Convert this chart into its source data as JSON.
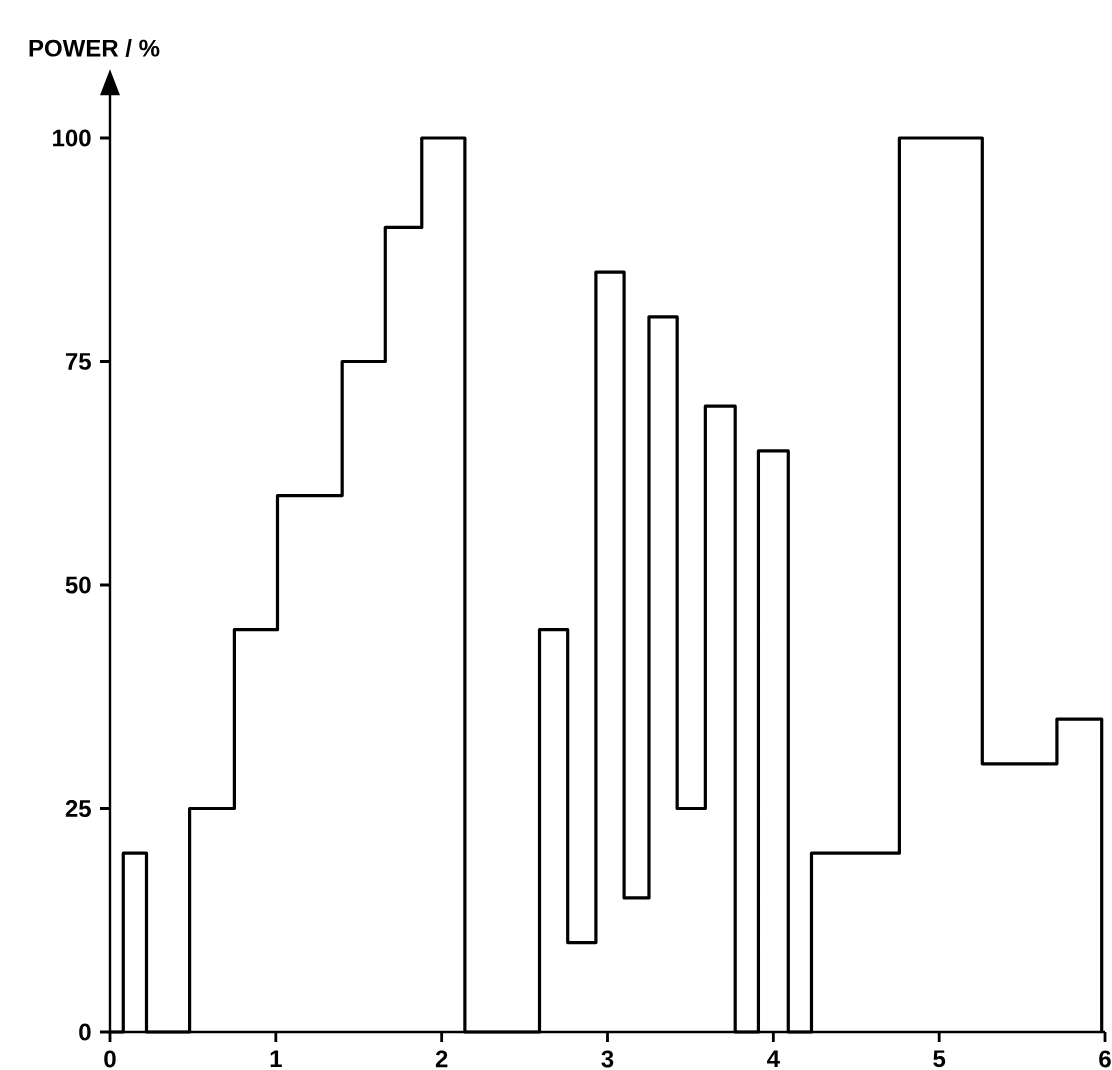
{
  "chart_data": {
    "type": "step",
    "ylabel": "POWER / %",
    "color": "#000000",
    "x": [
      0,
      0.08,
      0.22,
      0.48,
      0.75,
      1.01,
      1.4,
      1.66,
      1.88,
      2.14,
      2.59,
      2.76,
      2.93,
      3.1,
      3.25,
      3.42,
      3.59,
      3.77,
      3.91,
      4.09,
      4.23,
      4.76,
      5.26,
      5.71,
      5.98
    ],
    "values": [
      0,
      20,
      0,
      25,
      45,
      60,
      75,
      90,
      100,
      0,
      45,
      10,
      85,
      15,
      80,
      25,
      70,
      0,
      65,
      0,
      20,
      100,
      30,
      35,
      0
    ],
    "xlim": [
      0,
      6
    ],
    "ylim": [
      0,
      105
    ],
    "xticks": [
      0,
      1,
      2,
      3,
      4,
      5,
      6
    ],
    "yticks": [
      0,
      25,
      50,
      75,
      100
    ]
  }
}
